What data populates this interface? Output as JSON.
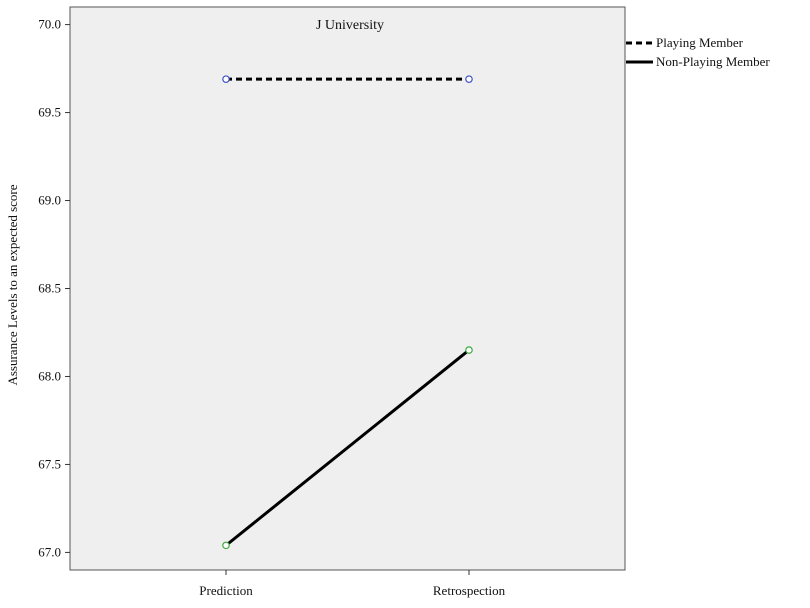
{
  "chart_data": {
    "type": "line",
    "title": "J University",
    "xlabel": "",
    "ylabel": "Assurance Levels to an expected score",
    "categories": [
      "Prediction",
      "Retrospection"
    ],
    "ylim": [
      66.9,
      70.1
    ],
    "yticks": [
      "67.0",
      "67.5",
      "68.0",
      "68.5",
      "69.0",
      "69.5",
      "70.0"
    ],
    "yticks_values": [
      67.0,
      67.5,
      68.0,
      68.5,
      69.0,
      69.5,
      70.0
    ],
    "grid": false,
    "legend_position": "right, outside plot",
    "series": [
      {
        "name": "Playing Member",
        "values": [
          69.69,
          69.69
        ],
        "line_style": "dashed",
        "line_color": "#000000",
        "marker_color": "#3b4fc4"
      },
      {
        "name": "Non-Playing Member",
        "values": [
          67.04,
          68.15
        ],
        "line_style": "solid",
        "line_color": "#000000",
        "marker_color": "#3daa3d"
      }
    ],
    "plot_background": "#efefef"
  }
}
